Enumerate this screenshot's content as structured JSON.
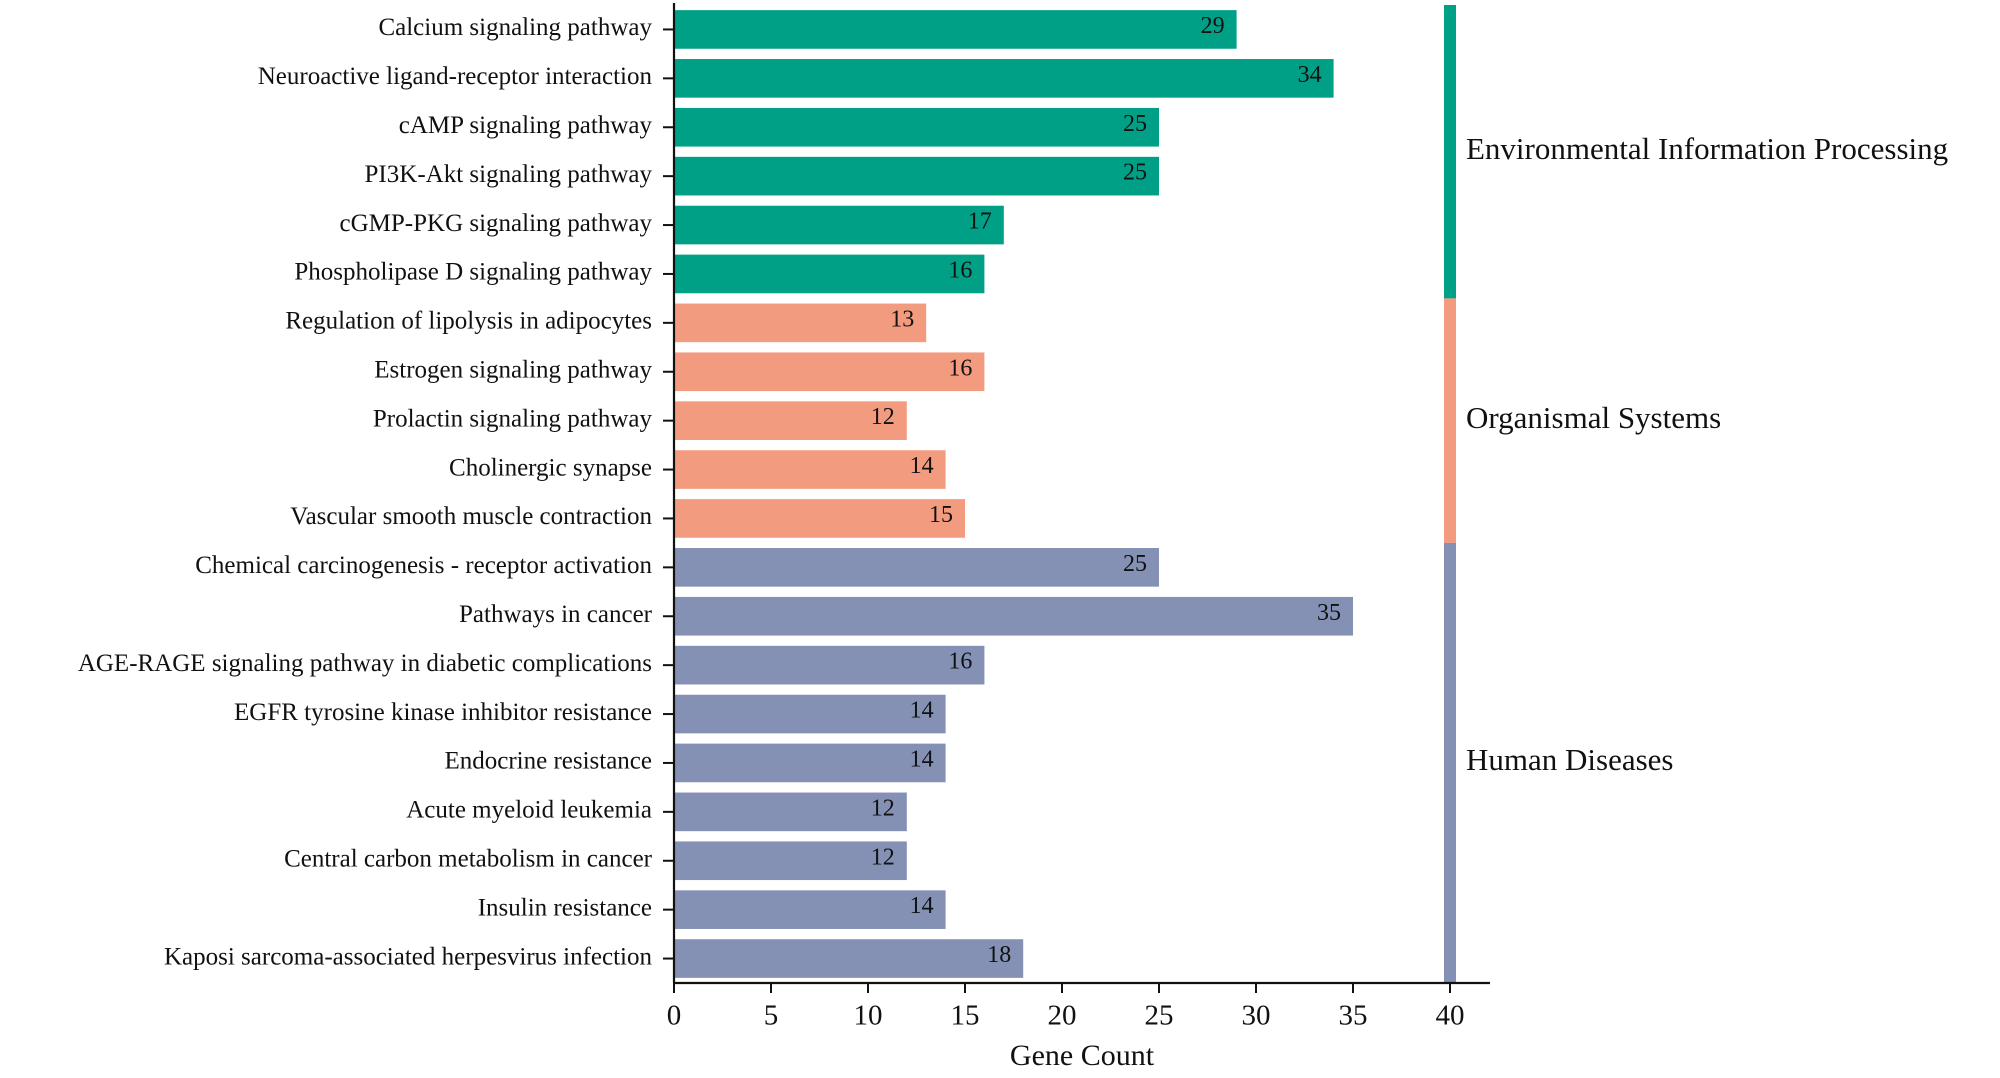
{
  "chart_data": {
    "type": "bar",
    "orientation": "horizontal",
    "title": "",
    "xlabel": "Gene Count",
    "ylabel": "",
    "xlim": [
      0,
      40
    ],
    "xticks": [
      0,
      5,
      10,
      15,
      20,
      25,
      30,
      35,
      40
    ],
    "grid": false,
    "categories": [
      "Calcium signaling pathway",
      "Neuroactive ligand-receptor interaction",
      "cAMP signaling pathway",
      "PI3K-Akt signaling pathway",
      "cGMP-PKG signaling pathway",
      "Phospholipase D signaling pathway",
      "Regulation of lipolysis in adipocytes",
      "Estrogen signaling pathway",
      "Prolactin signaling pathway",
      "Cholinergic synapse",
      "Vascular smooth muscle contraction",
      "Chemical carcinogenesis - receptor activation",
      "Pathways in cancer",
      "AGE-RAGE signaling pathway in diabetic complications",
      "EGFR tyrosine kinase inhibitor resistance",
      "Endocrine resistance",
      "Acute myeloid leukemia",
      "Central carbon metabolism in cancer",
      "Insulin resistance",
      "Kaposi sarcoma-associated herpesvirus infection"
    ],
    "values": [
      29,
      34,
      25,
      25,
      17,
      16,
      13,
      16,
      12,
      14,
      15,
      25,
      35,
      16,
      14,
      14,
      12,
      12,
      14,
      18
    ],
    "groups": [
      {
        "name": "Environmental Information Processing",
        "color": "#00a087",
        "count": 6
      },
      {
        "name": "Organismal Systems",
        "color": "#f39b7f",
        "count": 5
      },
      {
        "name": "Human Diseases",
        "color": "#8491b4",
        "count": 9
      }
    ],
    "data_labels": true,
    "legend": "group strip on right"
  }
}
